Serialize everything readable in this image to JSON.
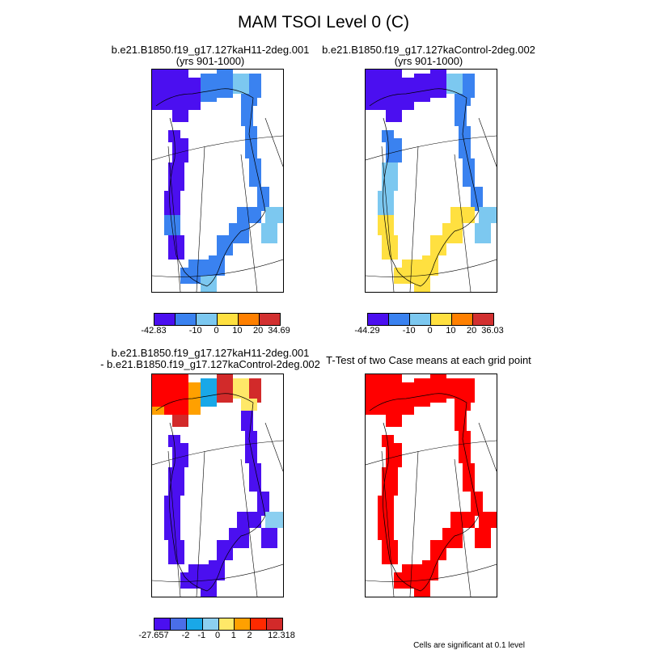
{
  "title": "MAM TSOI Level 0 (C)",
  "panels": [
    {
      "id": "case1",
      "title_line1": "b.e21.B1850.f19_g17.127kaH11-2deg.001",
      "title_line2": "(yrs 901-1000)",
      "colorbar": {
        "colors": [
          "#4b0ff0",
          "#3a82f0",
          "#7cc8f0",
          "#ffe040",
          "#ff8000",
          "#d23030"
        ],
        "tick_labels": [
          "-42.83",
          "-10",
          "0",
          "10",
          "20",
          "34.69"
        ]
      }
    },
    {
      "id": "case2",
      "title_line1": "b.e21.B1850.f19_g17.127kaControl-2deg.002",
      "title_line2": "(yrs 901-1000)",
      "colorbar": {
        "colors": [
          "#4b0ff0",
          "#3a82f0",
          "#7cc8f0",
          "#ffe040",
          "#ff8000",
          "#d23030"
        ],
        "tick_labels": [
          "-44.29",
          "-10",
          "0",
          "10",
          "20",
          "36.03"
        ]
      }
    },
    {
      "id": "difference",
      "title_line1": "b.e21.B1850.f19_g17.127kaH11-2deg.001",
      "title_line2": "- b.e21.B1850.f19_g17.127kaControl-2deg.002",
      "colorbar": {
        "colors": [
          "#4b0ff0",
          "#4a6ee8",
          "#19a8e8",
          "#8ccff0",
          "#ffe868",
          "#ffa000",
          "#ff2a00",
          "#d22a2a"
        ],
        "tick_labels": [
          "-27.657",
          "-2",
          "-1",
          "0",
          "1",
          "2",
          "12.318"
        ]
      }
    },
    {
      "id": "ttest",
      "title_line1": "T-Test of two Case means at each grid point",
      "footnote": "Cells are significant at 0.1 level"
    }
  ],
  "colors": {
    "dark_blue": "#4b0ff0",
    "mid_blue": "#3a82f0",
    "light_blue": "#7cc8f0",
    "yellow": "#ffe040",
    "red": "#ff0000"
  }
}
